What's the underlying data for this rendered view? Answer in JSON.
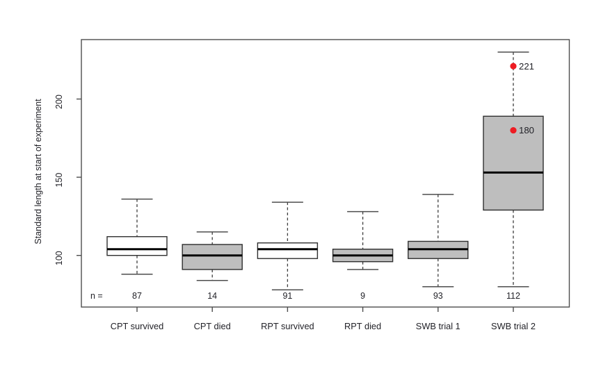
{
  "figure": {
    "background_color": "#ffffff",
    "frame_color": "#4d4d4d",
    "box_border_color": "#2f2f2f",
    "median_color": "#000000",
    "whisker_color": "#3d3d3d",
    "text_color": "#222228",
    "highlight_color": "#ee1c23"
  },
  "chart_data": {
    "type": "boxplot",
    "title": "",
    "xlabel": "",
    "ylabel": "Standard length at start of experiment",
    "y_ticks": [
      100,
      150,
      200
    ],
    "ylim": [
      67,
      238
    ],
    "grid": false,
    "legend": "none",
    "sample_size_prefix": "n =",
    "categories": [
      "CPT survived",
      "CPT died",
      "RPT survived",
      "RPT died",
      "SWB trial 1",
      "SWB trial 2"
    ],
    "boxes": [
      {
        "category": "CPT survived",
        "n": "87",
        "fill": "#ffffff",
        "whisker_low": 88,
        "q1": 100,
        "median": 104,
        "q3": 112,
        "whisker_high": 136
      },
      {
        "category": "CPT died",
        "n": "14",
        "fill": "#bebebe",
        "whisker_low": 84,
        "q1": 91,
        "median": 100,
        "q3": 107,
        "whisker_high": 115
      },
      {
        "category": "RPT survived",
        "n": "91",
        "fill": "#ffffff",
        "whisker_low": 78,
        "q1": 98,
        "median": 104,
        "q3": 108,
        "whisker_high": 134
      },
      {
        "category": "RPT died",
        "n": "9",
        "fill": "#bebebe",
        "whisker_low": 91,
        "q1": 96,
        "median": 100,
        "q3": 104,
        "whisker_high": 128
      },
      {
        "category": "SWB trial 1",
        "n": "93",
        "fill": "#bebebe",
        "whisker_low": 80,
        "q1": 98,
        "median": 104,
        "q3": 109,
        "whisker_high": 139
      },
      {
        "category": "SWB trial 2",
        "n": "112",
        "fill": "#bebebe",
        "whisker_low": 80,
        "q1": 129,
        "median": 153,
        "q3": 189,
        "whisker_high": 230
      }
    ],
    "highlighted_points": [
      {
        "category_index": 5,
        "value": 221,
        "label": "221",
        "color": "#ee1c23"
      },
      {
        "category_index": 5,
        "value": 180,
        "label": "180",
        "color": "#ee1c23"
      }
    ]
  }
}
